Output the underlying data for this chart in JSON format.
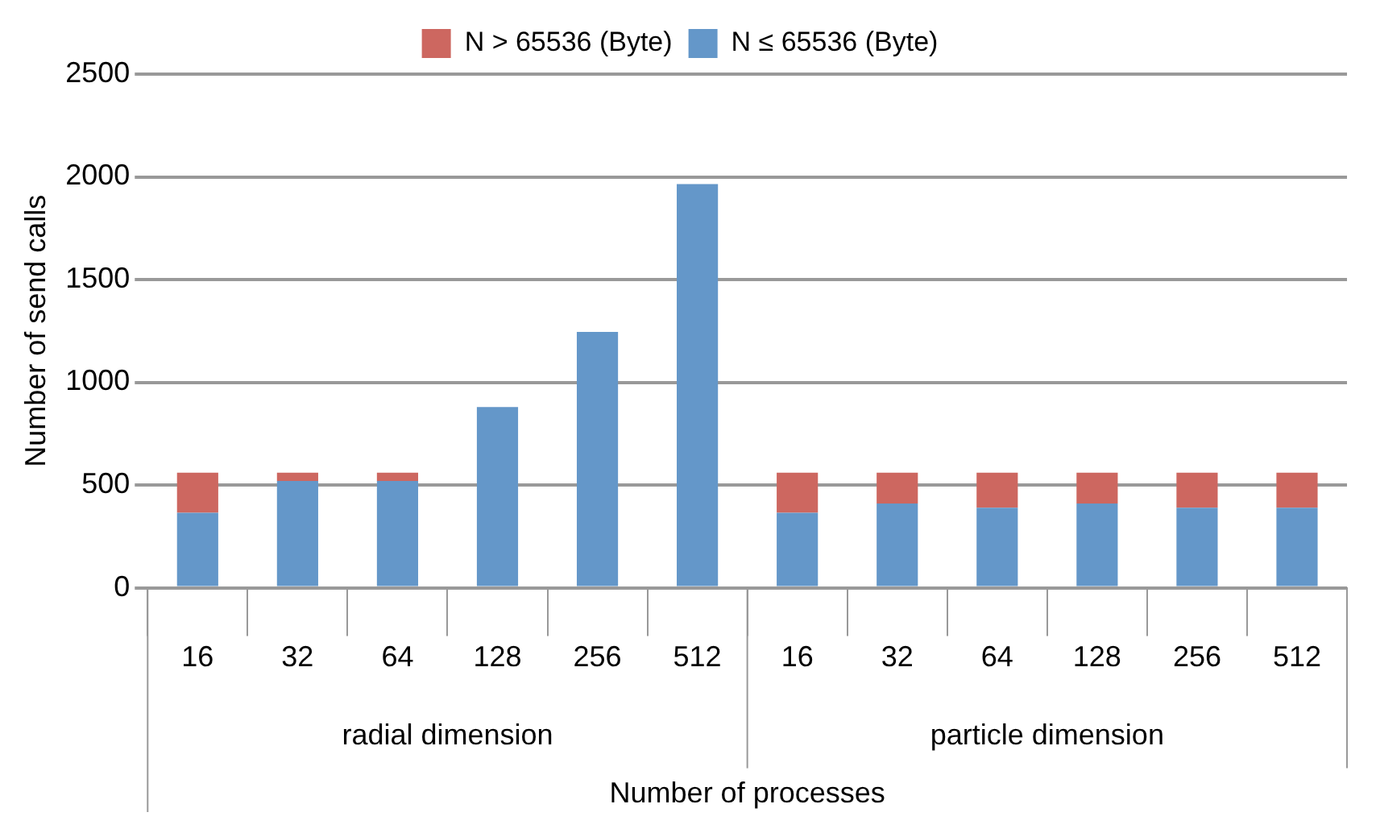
{
  "chart_data": {
    "type": "bar",
    "stacked": true,
    "categories": [
      "16",
      "32",
      "64",
      "128",
      "256",
      "512",
      "16",
      "32",
      "64",
      "128",
      "256",
      "512"
    ],
    "series": [
      {
        "name": "N ≤ 65536 (Byte)",
        "color": "#6497c9",
        "values": [
          365,
          520,
          520,
          880,
          1245,
          1965,
          365,
          410,
          390,
          410,
          390,
          390
        ]
      },
      {
        "name": "N > 65536 (Byte)",
        "color": "#cd6760",
        "values": [
          195,
          40,
          40,
          0,
          0,
          0,
          195,
          150,
          170,
          150,
          170,
          170
        ]
      }
    ],
    "ylim": [
      0,
      2500
    ],
    "yticks": [
      0,
      500,
      1000,
      1500,
      2000,
      2500
    ],
    "grid": "y",
    "legend": "top",
    "ylabel": "Number of send calls",
    "xlabel": "Number of processes",
    "annotations": [
      "radial dimension",
      "particle dimension"
    ]
  }
}
